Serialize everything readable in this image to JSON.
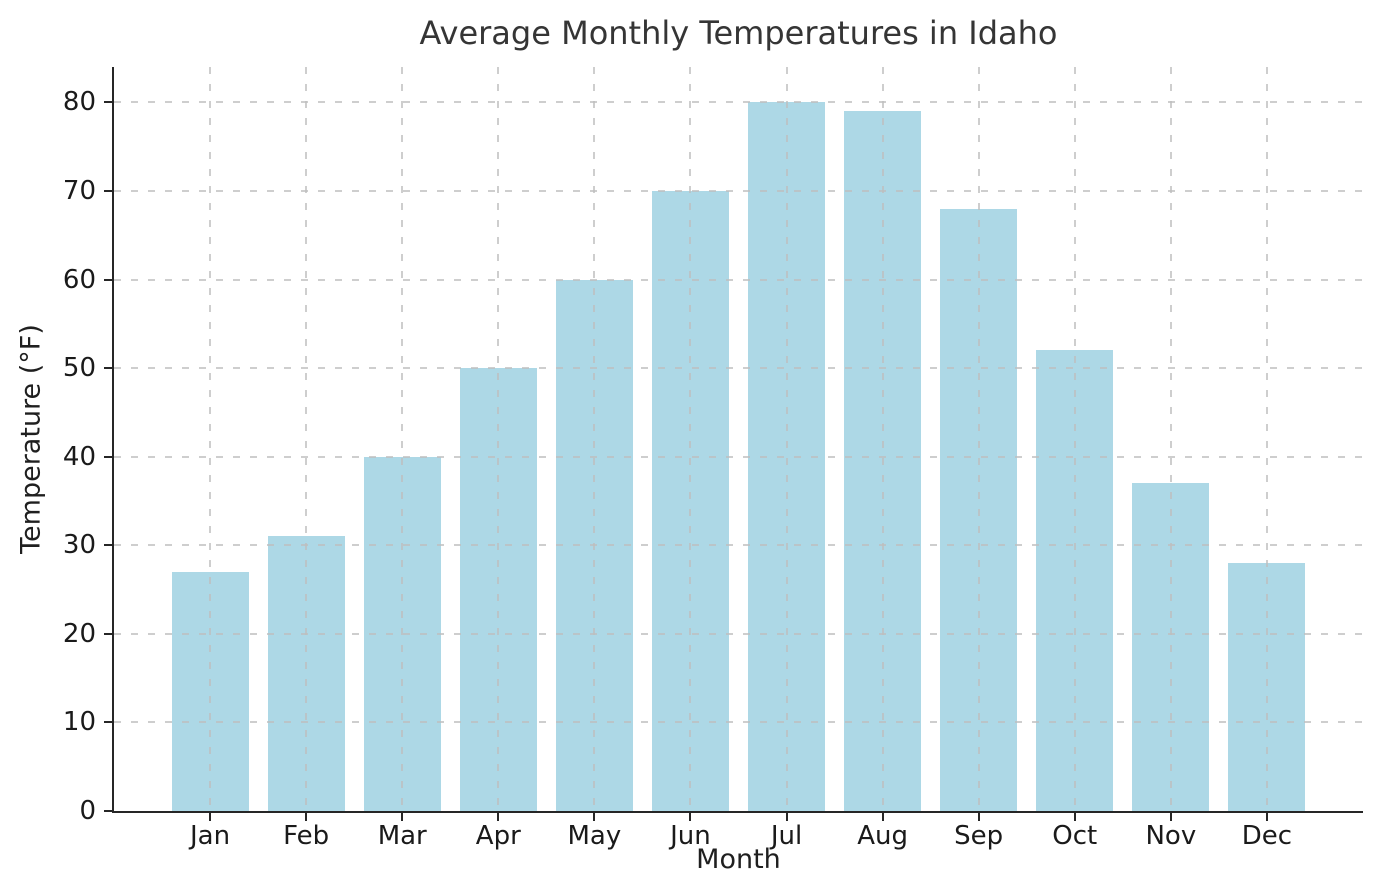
{
  "chart_data": {
    "type": "bar",
    "title": "Average Monthly Temperatures in Idaho",
    "xlabel": "Month",
    "ylabel": "Temperature (°F)",
    "categories": [
      "Jan",
      "Feb",
      "Mar",
      "Apr",
      "May",
      "Jun",
      "Jul",
      "Aug",
      "Sep",
      "Oct",
      "Nov",
      "Dec"
    ],
    "values": [
      27,
      31,
      40,
      50,
      60,
      70,
      80,
      79,
      68,
      52,
      37,
      28
    ],
    "yticks": [
      0,
      10,
      20,
      30,
      40,
      50,
      60,
      70,
      80
    ],
    "ylim": [
      0,
      84
    ],
    "grid": true,
    "legend": "none",
    "colors": {
      "bar": "#ADD8E6",
      "spine": "#262626",
      "grid": "#bebebe",
      "text": "#1a1a1a",
      "title": "#353535",
      "background": "#ffffff"
    }
  }
}
